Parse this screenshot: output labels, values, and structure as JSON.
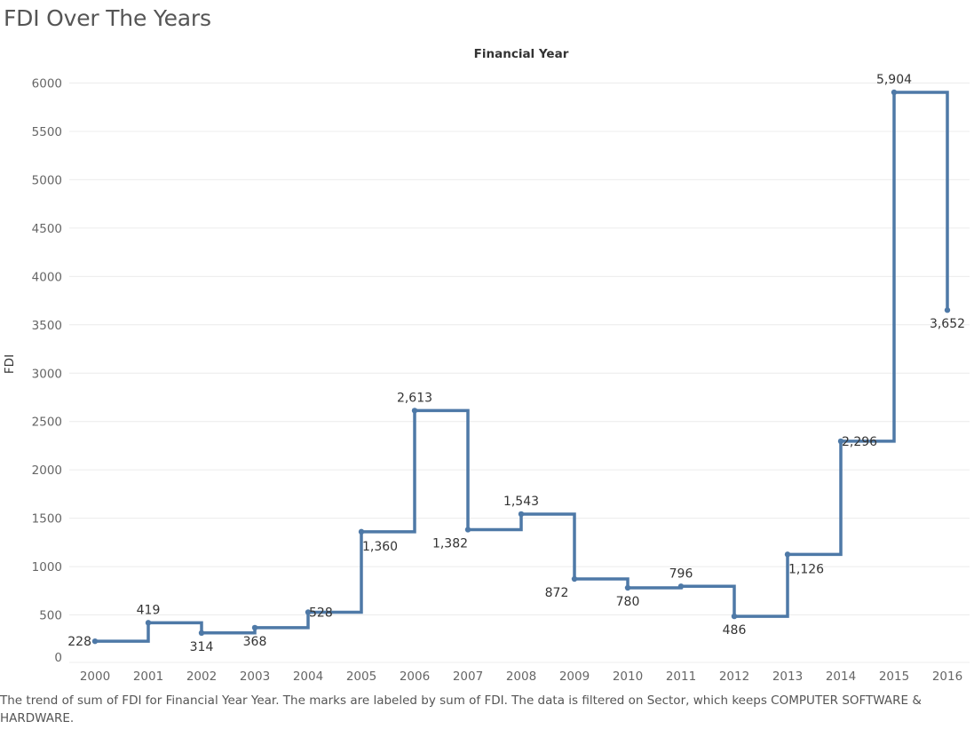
{
  "page": {
    "title": "FDI Over The Years",
    "caption": "The trend of sum of FDI for Financial Year Year.  The marks are labeled by sum of FDI. The data is filtered on Sector, which keeps COMPUTER SOFTWARE & HARDWARE."
  },
  "chart_data": {
    "type": "line",
    "interpolation": "step-after",
    "title": "Financial Year",
    "xlabel": "Financial Year",
    "ylabel": "FDI",
    "categories": [
      "2000",
      "2001",
      "2002",
      "2003",
      "2004",
      "2005",
      "2006",
      "2007",
      "2008",
      "2009",
      "2010",
      "2011",
      "2012",
      "2013",
      "2014",
      "2015",
      "2016"
    ],
    "series": [
      {
        "values": [
          228,
          419,
          314,
          368,
          528,
          1360,
          2613,
          1382,
          1543,
          872,
          780,
          796,
          486,
          1126,
          2296,
          5904,
          3652
        ],
        "labels": [
          "228",
          "419",
          "314",
          "368",
          "528",
          "1,360",
          "2,613",
          "1,382",
          "1,543",
          "872",
          "780",
          "796",
          "486",
          "1,126",
          "2,296",
          "5,904",
          "3,652"
        ],
        "color": "#4e79a7"
      }
    ],
    "yticks": [
      0,
      500,
      1000,
      1500,
      2000,
      2500,
      3000,
      3500,
      4000,
      4500,
      5000,
      5500,
      6000
    ],
    "ylim": [
      0,
      6000
    ],
    "grid": true,
    "colors": {
      "line": "#4e79a7",
      "grid": "#ececec",
      "axis_text": "#666666",
      "label_text": "#333333"
    }
  }
}
